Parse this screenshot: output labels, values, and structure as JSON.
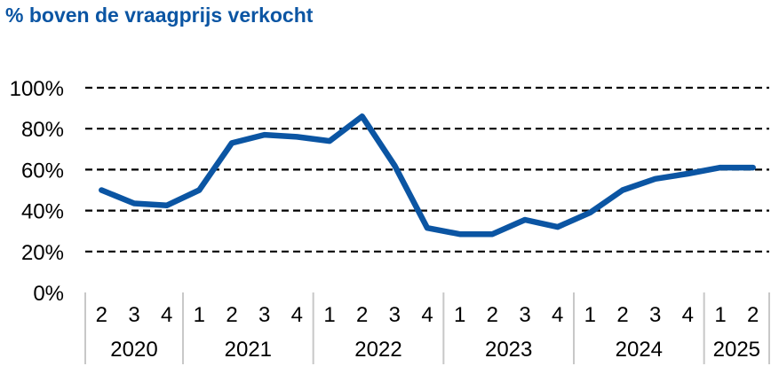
{
  "chart_data": {
    "type": "line",
    "title": "% boven de vraagprijs verkocht",
    "xlabel": "",
    "ylabel": "",
    "ylim": [
      0,
      100
    ],
    "y_ticks": [
      0,
      20,
      40,
      60,
      80,
      100
    ],
    "y_tick_labels": [
      "0%",
      "20%",
      "40%",
      "60%",
      "80%",
      "100%"
    ],
    "grid": "horizontal dashed",
    "x": [
      "2020 Q2",
      "2020 Q3",
      "2020 Q4",
      "2021 Q1",
      "2021 Q2",
      "2021 Q3",
      "2021 Q4",
      "2022 Q1",
      "2022 Q2",
      "2022 Q3",
      "2022 Q4",
      "2023 Q1",
      "2023 Q2",
      "2023 Q3",
      "2023 Q4",
      "2024 Q1",
      "2024 Q2",
      "2024 Q3",
      "2024 Q4",
      "2025 Q1",
      "2025 Q2"
    ],
    "quarter_labels": [
      "2",
      "3",
      "4",
      "1",
      "2",
      "3",
      "4",
      "1",
      "2",
      "3",
      "4",
      "1",
      "2",
      "3",
      "4",
      "1",
      "2",
      "3",
      "4",
      "1",
      "2"
    ],
    "year_groups": [
      {
        "label": "2020",
        "count": 3
      },
      {
        "label": "2021",
        "count": 4
      },
      {
        "label": "2022",
        "count": 4
      },
      {
        "label": "2023",
        "count": 4
      },
      {
        "label": "2024",
        "count": 4
      },
      {
        "label": "2025",
        "count": 2
      }
    ],
    "series": [
      {
        "values": [
          50,
          43.5,
          42.5,
          50,
          73,
          77,
          76,
          74,
          86,
          62,
          31.5,
          28.5,
          28.5,
          35.5,
          32,
          39,
          50,
          55.5,
          58,
          61,
          61
        ]
      }
    ],
    "line_color": "#0b55a3"
  }
}
